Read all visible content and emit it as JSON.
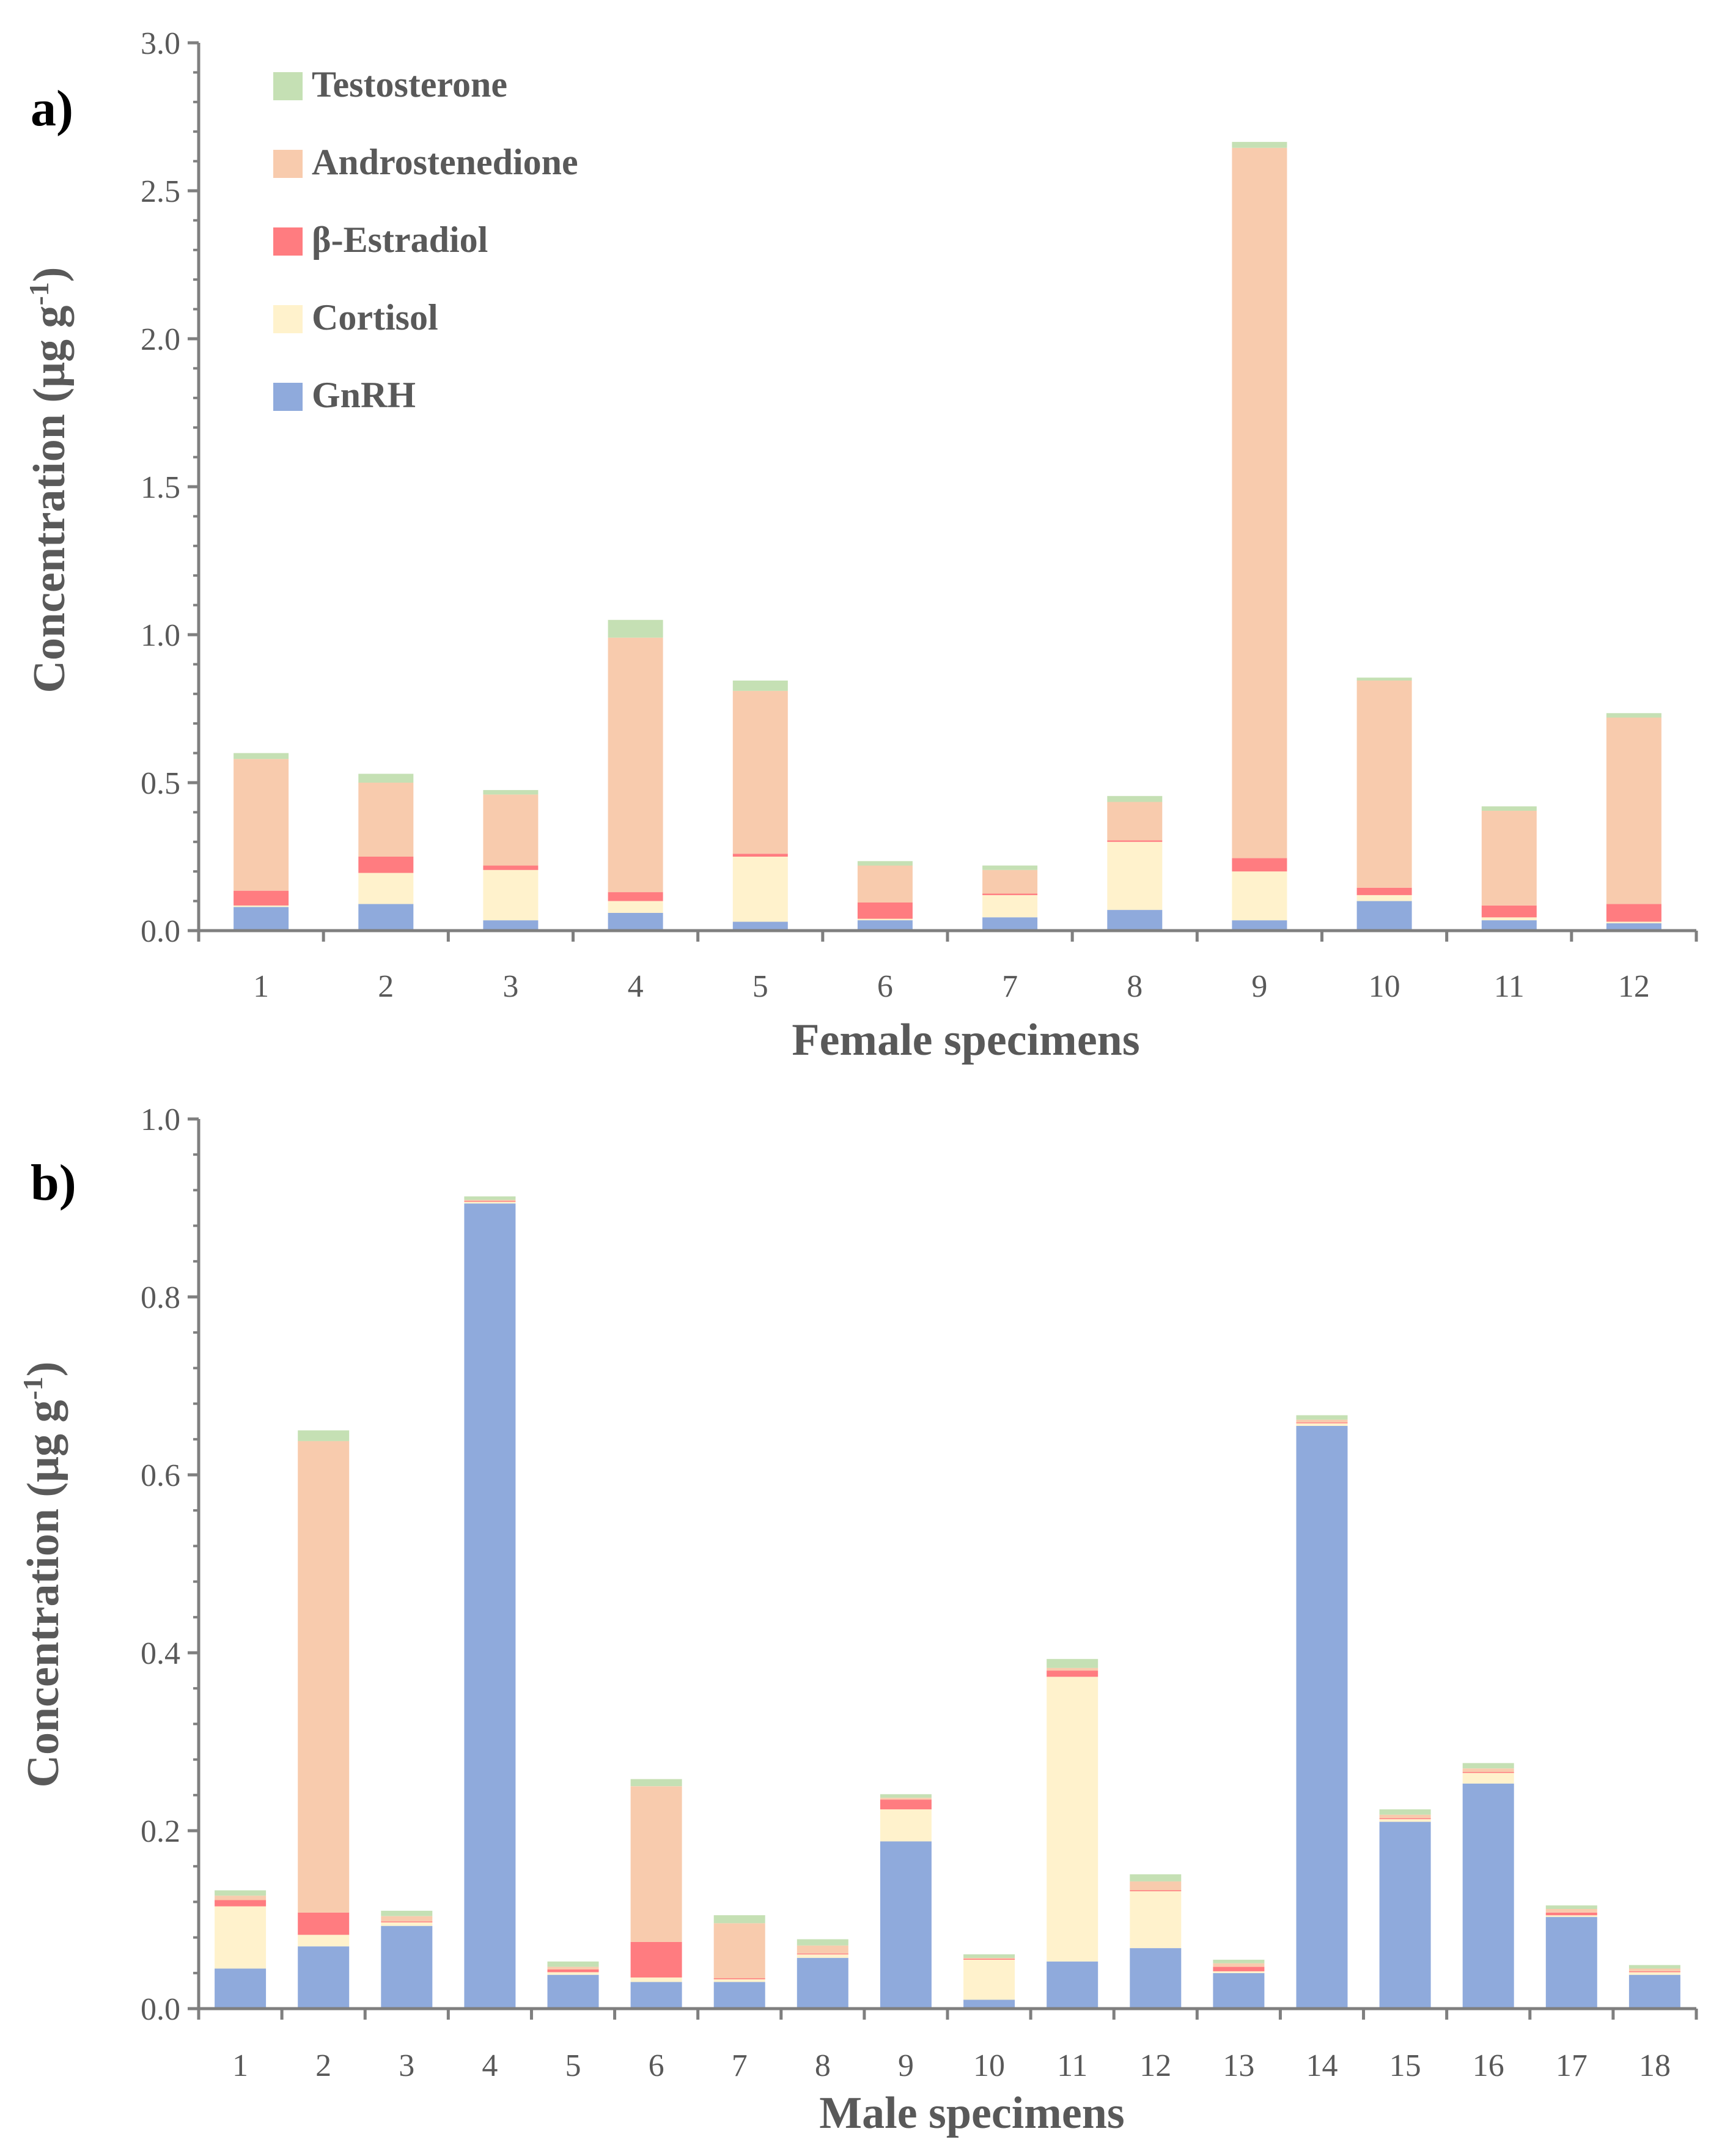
{
  "series": [
    {
      "name": "GnRH",
      "color": "#8faadc"
    },
    {
      "name": "Cortisol",
      "color": "#fff2cc"
    },
    {
      "name": "β-Estradiol",
      "color": "#ff7c80"
    },
    {
      "name": "Androstenedione",
      "color": "#f8cbad"
    },
    {
      "name": "Testosterone",
      "color": "#c5e0b4"
    }
  ],
  "legend_order": [
    4,
    3,
    2,
    1,
    0
  ],
  "chart_data": [
    {
      "type": "bar",
      "stacked": true,
      "panel_label": "a)",
      "xlabel": "Female specimens",
      "ylabel": "Concentration (μg g",
      "ylabel_sup": "-1",
      "ylabel_close": ")",
      "ylim": [
        0,
        3.0
      ],
      "yticks": [
        "0.0",
        "0.5",
        "1.0",
        "1.5",
        "2.0",
        "2.5",
        "3.0"
      ],
      "legend": "top-left",
      "categories": [
        "1",
        "2",
        "3",
        "4",
        "5",
        "6",
        "7",
        "8",
        "9",
        "10",
        "11",
        "12"
      ],
      "series": [
        {
          "name": "GnRH",
          "values": [
            0.08,
            0.09,
            0.035,
            0.06,
            0.03,
            0.035,
            0.045,
            0.07,
            0.035,
            0.1,
            0.035,
            0.025
          ]
        },
        {
          "name": "Cortisol",
          "values": [
            0.005,
            0.105,
            0.17,
            0.04,
            0.22,
            0.005,
            0.075,
            0.23,
            0.165,
            0.02,
            0.01,
            0.005
          ]
        },
        {
          "name": "β-Estradiol",
          "values": [
            0.05,
            0.055,
            0.015,
            0.03,
            0.01,
            0.055,
            0.005,
            0.005,
            0.045,
            0.025,
            0.04,
            0.06
          ]
        },
        {
          "name": "Androstenedione",
          "values": [
            0.445,
            0.25,
            0.24,
            0.86,
            0.55,
            0.125,
            0.08,
            0.13,
            2.4,
            0.7,
            0.32,
            0.63
          ]
        },
        {
          "name": "Testosterone",
          "values": [
            0.02,
            0.03,
            0.015,
            0.06,
            0.035,
            0.015,
            0.015,
            0.02,
            0.02,
            0.01,
            0.015,
            0.015
          ]
        }
      ]
    },
    {
      "type": "bar",
      "stacked": true,
      "panel_label": "b)",
      "xlabel": "Male specimens",
      "ylabel": "Concentration (μg g",
      "ylabel_sup": "-1",
      "ylabel_close": ")",
      "ylim": [
        0,
        1.0
      ],
      "yticks": [
        "0.0",
        "0.2",
        "0.4",
        "0.6",
        "0.8",
        "1.0"
      ],
      "categories": [
        "1",
        "2",
        "3",
        "4",
        "5",
        "6",
        "7",
        "8",
        "9",
        "10",
        "11",
        "12",
        "13",
        "14",
        "15",
        "16",
        "17",
        "18"
      ],
      "series": [
        {
          "name": "GnRH",
          "values": [
            0.045,
            0.07,
            0.093,
            0.905,
            0.038,
            0.03,
            0.03,
            0.057,
            0.188,
            0.01,
            0.053,
            0.068,
            0.04,
            0.655,
            0.21,
            0.253,
            0.103,
            0.038
          ]
        },
        {
          "name": "Cortisol",
          "values": [
            0.07,
            0.013,
            0.004,
            0.002,
            0.003,
            0.005,
            0.003,
            0.004,
            0.036,
            0.045,
            0.32,
            0.064,
            0.002,
            0.003,
            0.003,
            0.012,
            0.002,
            0.003
          ]
        },
        {
          "name": "β-Estradiol",
          "values": [
            0.007,
            0.025,
            0.001,
            0.001,
            0.003,
            0.04,
            0.001,
            0.001,
            0.011,
            0.001,
            0.007,
            0.001,
            0.005,
            0.001,
            0.001,
            0.001,
            0.003,
            0.001
          ]
        },
        {
          "name": "Androstenedione",
          "values": [
            0.005,
            0.53,
            0.006,
            0.001,
            0.003,
            0.175,
            0.062,
            0.009,
            0.002,
            0.001,
            0.003,
            0.01,
            0.004,
            0.003,
            0.004,
            0.004,
            0.004,
            0.003
          ]
        },
        {
          "name": "Testosterone",
          "values": [
            0.006,
            0.012,
            0.006,
            0.004,
            0.006,
            0.008,
            0.009,
            0.007,
            0.004,
            0.004,
            0.01,
            0.008,
            0.004,
            0.005,
            0.006,
            0.006,
            0.004,
            0.004
          ]
        }
      ]
    }
  ]
}
